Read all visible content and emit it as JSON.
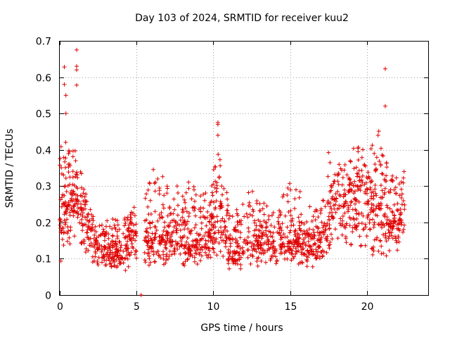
{
  "chart_data": {
    "type": "scatter",
    "title": "Day 103 of 2024, SRMTID for receiver kuu2",
    "xlabel": "GPS time / hours",
    "ylabel": "SRMTID / TECUs",
    "xlim": [
      0,
      24
    ],
    "ylim": [
      0,
      0.7
    ],
    "xticks": [
      0,
      5,
      10,
      15,
      20
    ],
    "yticks": [
      0,
      0.1,
      0.2,
      0.3,
      0.4,
      0.5,
      0.6,
      0.7
    ],
    "xtick_labels": [
      "0",
      "5",
      "10",
      "15",
      "20"
    ],
    "ytick_labels": [
      "0",
      "0.1",
      "0.2",
      "0.3",
      "0.4",
      "0.5",
      "0.6",
      "0.7"
    ],
    "grid": true,
    "marker": "+",
    "marker_color": "#e00000",
    "series": [
      {
        "name": "SRMTID",
        "note": "approximate envelope of dense point cloud read from the figure",
        "x": [
          0.0,
          0.5,
          1.0,
          1.5,
          2.0,
          2.5,
          3.0,
          3.5,
          4.0,
          4.5,
          5.0,
          5.5,
          6.0,
          6.5,
          7.0,
          7.5,
          8.0,
          8.5,
          9.0,
          9.5,
          10.0,
          10.5,
          11.0,
          11.5,
          12.0,
          12.5,
          13.0,
          13.5,
          14.0,
          14.5,
          15.0,
          15.5,
          16.0,
          16.5,
          17.0,
          17.5,
          18.0,
          18.5,
          19.0,
          19.5,
          20.0,
          20.5,
          21.0,
          21.5,
          22.0,
          22.5
        ],
        "y_low": [
          0.08,
          0.1,
          0.1,
          0.1,
          0.08,
          0.07,
          0.07,
          0.07,
          0.06,
          0.07,
          0.07,
          0.07,
          0.07,
          0.08,
          0.08,
          0.08,
          0.07,
          0.08,
          0.08,
          0.08,
          0.08,
          0.08,
          0.06,
          0.06,
          0.07,
          0.07,
          0.07,
          0.08,
          0.07,
          0.08,
          0.08,
          0.08,
          0.07,
          0.07,
          0.08,
          0.1,
          0.12,
          0.13,
          0.13,
          0.12,
          0.1,
          0.1,
          0.09,
          0.1,
          0.11,
          0.13
        ],
        "y_mid": [
          0.23,
          0.25,
          0.28,
          0.22,
          0.18,
          0.13,
          0.12,
          0.12,
          0.12,
          0.15,
          0.16,
          0.15,
          0.15,
          0.16,
          0.15,
          0.16,
          0.16,
          0.15,
          0.16,
          0.16,
          0.18,
          0.25,
          0.13,
          0.12,
          0.14,
          0.15,
          0.15,
          0.15,
          0.14,
          0.15,
          0.15,
          0.15,
          0.14,
          0.13,
          0.14,
          0.22,
          0.25,
          0.25,
          0.27,
          0.3,
          0.28,
          0.25,
          0.25,
          0.2,
          0.2,
          0.24
        ],
        "y_high": [
          0.45,
          0.42,
          0.4,
          0.32,
          0.25,
          0.2,
          0.21,
          0.22,
          0.2,
          0.25,
          0.28,
          0.3,
          0.35,
          0.38,
          0.3,
          0.32,
          0.35,
          0.33,
          0.3,
          0.32,
          0.36,
          0.45,
          0.25,
          0.27,
          0.26,
          0.3,
          0.26,
          0.26,
          0.25,
          0.27,
          0.32,
          0.35,
          0.25,
          0.24,
          0.28,
          0.43,
          0.35,
          0.38,
          0.4,
          0.42,
          0.4,
          0.43,
          0.48,
          0.35,
          0.33,
          0.4
        ],
        "outliers": [
          [
            1.1,
            0.675
          ],
          [
            1.1,
            0.63
          ],
          [
            1.1,
            0.62
          ],
          [
            1.1,
            0.578
          ],
          [
            0.3,
            0.628
          ],
          [
            0.3,
            0.58
          ],
          [
            0.4,
            0.55
          ],
          [
            0.4,
            0.5
          ],
          [
            21.2,
            0.623
          ],
          [
            21.2,
            0.52
          ],
          [
            10.3,
            0.475
          ],
          [
            10.3,
            0.47
          ],
          [
            10.3,
            0.44
          ],
          [
            5.3,
            0.0
          ]
        ]
      }
    ]
  }
}
